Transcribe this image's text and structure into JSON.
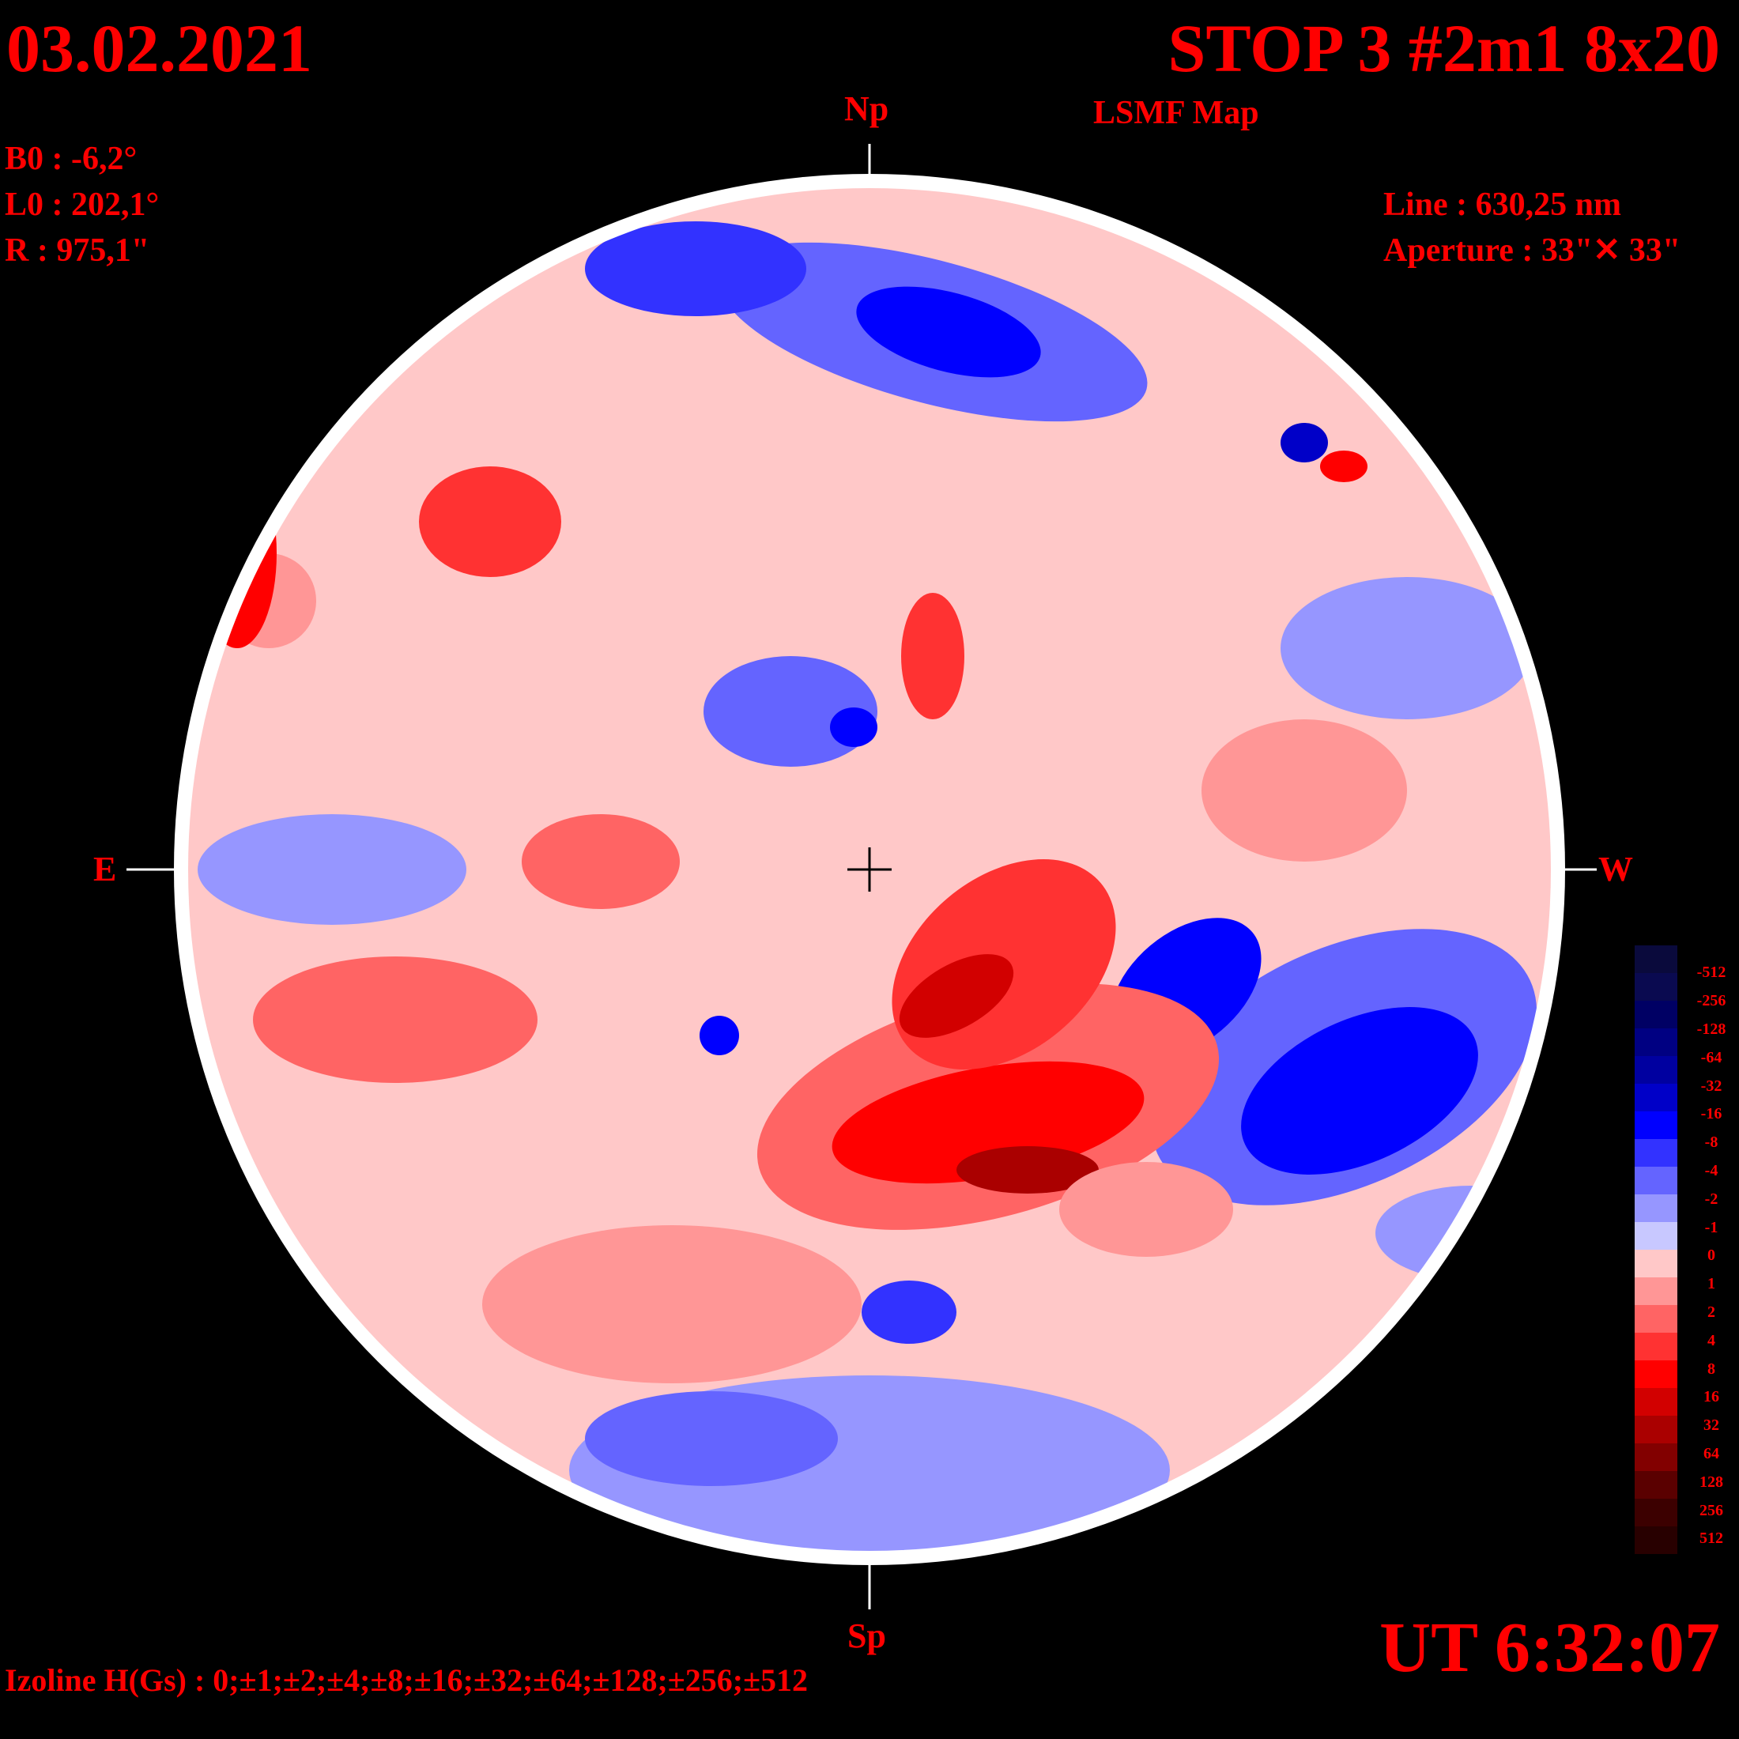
{
  "header": {
    "date": "03.02.2021",
    "title": "STOP 3 #2m1 8x20",
    "subtitle": "LSMF  Map"
  },
  "params": {
    "b0": "B0 : -6,2°",
    "l0": "L0 : 202,1°",
    "r": "R  : 975,1\""
  },
  "instrument": {
    "line": "Line :  630,25 nm",
    "aperture": "Aperture : 33\"✕ 33\""
  },
  "directions": {
    "north": "Np",
    "south": "Sp",
    "east": "E",
    "west": "W"
  },
  "time": "UT 6:32:07",
  "izoline": "Izoline H(Gs) : 0;±1;±2;±4;±8;±16;±32;±64;±128;±256;±512",
  "colors": {
    "text": "#ff0000",
    "background": "#000000",
    "negative_strong": "#0000cc",
    "negative_weak": "#c8c8ff",
    "positive_weak": "#ffc8c8",
    "positive_strong": "#e00000"
  },
  "colorbar": {
    "labels": [
      "-512",
      "-256",
      "-128",
      "-64",
      "-32",
      "-16",
      "-8",
      "-4",
      "-2",
      "-1",
      "0",
      "1",
      "2",
      "4",
      "8",
      "16",
      "32",
      "64",
      "128",
      "256",
      "512"
    ],
    "colors": [
      "#0a0a3c",
      "#0a0a50",
      "#000064",
      "#000082",
      "#0000a0",
      "#0000c8",
      "#0000ff",
      "#3232ff",
      "#6464ff",
      "#9696ff",
      "#c8c8ff",
      "#ffc8c8",
      "#ff9696",
      "#ff6464",
      "#ff3232",
      "#ff0000",
      "#d20000",
      "#aa0000",
      "#820000",
      "#5a0000",
      "#3c0000",
      "#280000"
    ]
  }
}
